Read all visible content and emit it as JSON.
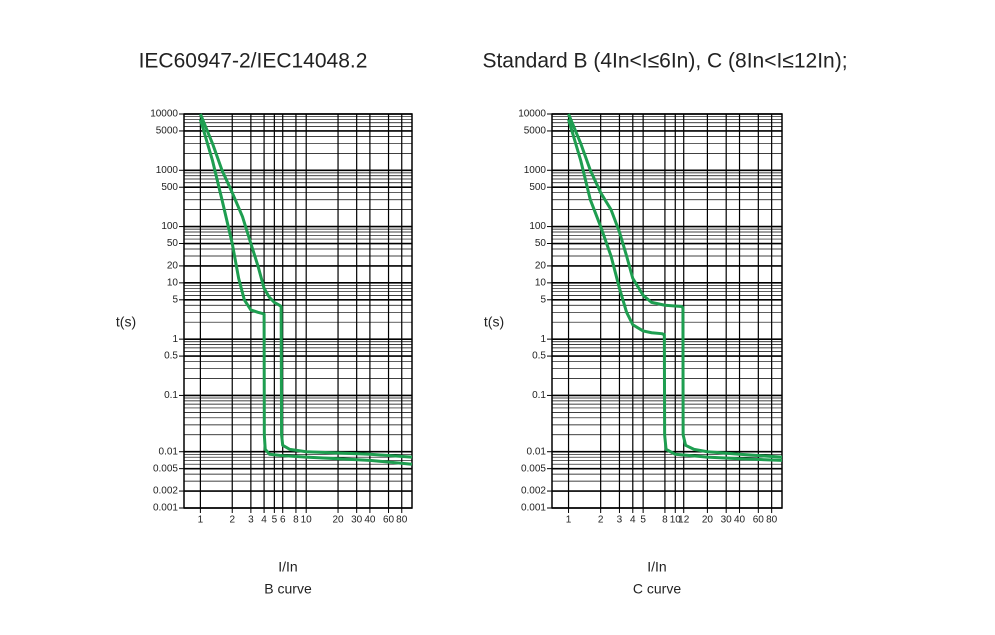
{
  "header": {
    "title": "IEC60947-2/IEC14048.2",
    "subtitle": "Standard B (4In<I≤6In),   C (8In<I≤12In);"
  },
  "chart_data": [
    {
      "type": "line",
      "ylabel": "t(s)",
      "xlabel": "I/In",
      "caption": "B curve",
      "log_x": true,
      "log_y": true,
      "grid": true,
      "xlim": [
        0.7,
        100
      ],
      "ylim": [
        0.001,
        10000
      ],
      "xticks": [
        1,
        2,
        3,
        4,
        5,
        6,
        8,
        10,
        20,
        30,
        40,
        60,
        80
      ],
      "yticks": [
        0.001,
        0.002,
        0.005,
        0.01,
        0.1,
        0.5,
        1,
        5,
        10,
        20,
        50,
        100,
        500,
        1000,
        5000,
        10000
      ],
      "series": [
        {
          "color": "#1e9e50",
          "x": [
            1,
            1.3,
            1.6,
            2,
            2.3,
            2.6,
            3,
            3.5,
            4,
            4.02,
            4.1,
            4.5,
            6,
            10,
            20,
            40,
            100
          ],
          "values": [
            8000,
            1500,
            300,
            50,
            12,
            5,
            3.3,
            3,
            2.8,
            0.02,
            0.011,
            0.009,
            0.0085,
            0.008,
            0.0075,
            0.007,
            0.006
          ]
        },
        {
          "color": "#1e9e50",
          "x": [
            1,
            1.3,
            1.6,
            2,
            2.5,
            3,
            3.5,
            4,
            4.5,
            5,
            5.6,
            5.8,
            5.85,
            6,
            7,
            10,
            20,
            40,
            100
          ],
          "values": [
            10000,
            3000,
            1000,
            400,
            150,
            50,
            20,
            8,
            5.5,
            4.5,
            4,
            3.8,
            0.02,
            0.013,
            0.011,
            0.01,
            0.0095,
            0.009,
            0.008
          ]
        }
      ]
    },
    {
      "type": "line",
      "ylabel": "t(s)",
      "xlabel": "I/In",
      "caption": "C curve",
      "log_x": true,
      "log_y": true,
      "grid": true,
      "xlim": [
        0.7,
        100
      ],
      "ylim": [
        0.001,
        10000
      ],
      "xticks": [
        1,
        2,
        3,
        4,
        5,
        8,
        10,
        12,
        20,
        30,
        40,
        60,
        80
      ],
      "yticks": [
        0.001,
        0.002,
        0.005,
        0.01,
        0.1,
        0.5,
        1,
        5,
        10,
        20,
        50,
        100,
        500,
        1000,
        5000,
        10000
      ],
      "series": [
        {
          "color": "#1e9e50",
          "x": [
            1,
            1.3,
            1.6,
            2,
            2.5,
            3,
            3.5,
            4,
            5,
            6,
            7.5,
            7.9,
            7.95,
            8.2,
            10,
            20,
            40,
            100
          ],
          "values": [
            8000,
            1500,
            300,
            100,
            30,
            8,
            3,
            1.8,
            1.4,
            1.3,
            1.25,
            1.2,
            0.02,
            0.011,
            0.009,
            0.008,
            0.0075,
            0.007
          ]
        },
        {
          "color": "#1e9e50",
          "x": [
            1,
            1.3,
            1.6,
            2,
            2.5,
            3,
            3.5,
            4,
            5,
            6,
            8,
            11.5,
            11.8,
            11.85,
            12.5,
            15,
            20,
            40,
            100
          ],
          "values": [
            10000,
            3000,
            1000,
            400,
            200,
            80,
            30,
            12,
            6,
            4.5,
            4,
            3.8,
            3.6,
            0.02,
            0.013,
            0.011,
            0.01,
            0.009,
            0.008
          ]
        }
      ]
    }
  ]
}
